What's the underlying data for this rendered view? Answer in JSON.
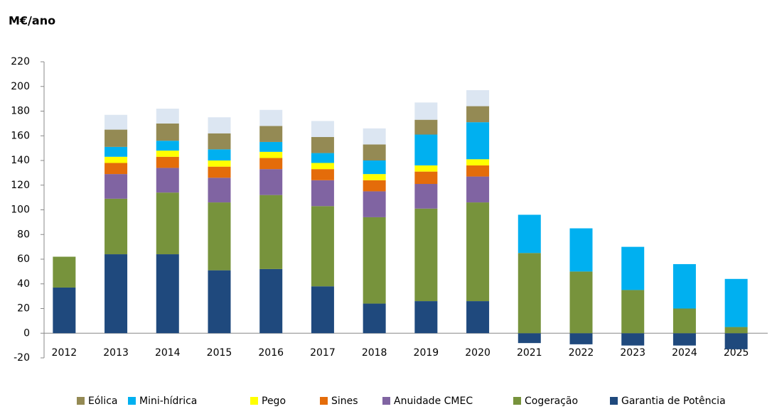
{
  "chart_data": {
    "type": "stacked_bar",
    "title": "M€/ano",
    "categories": [
      "2012",
      "2013",
      "2014",
      "2015",
      "2016",
      "2017",
      "2018",
      "2019",
      "2020",
      "2021",
      "2022",
      "2023",
      "2024",
      "2025"
    ],
    "series": [
      {
        "name": "Garantia de Potência",
        "color": "#1f497d",
        "values": [
          37,
          64,
          64,
          51,
          52,
          38,
          24,
          26,
          26,
          -8,
          -9,
          -10,
          -10,
          -13
        ]
      },
      {
        "name": "Cogeração",
        "color": "#77933c",
        "values": [
          25,
          45,
          50,
          55,
          60,
          65,
          70,
          75,
          80,
          65,
          50,
          35,
          20,
          5
        ]
      },
      {
        "name": "Anuidade CMEC",
        "color": "#8064a2",
        "values": [
          0,
          20,
          20,
          20,
          21,
          21,
          21,
          20,
          21,
          0,
          0,
          0,
          0,
          0
        ]
      },
      {
        "name": "Sines",
        "color": "#e46c0a",
        "values": [
          0,
          9,
          9,
          9,
          9,
          9,
          9,
          10,
          9,
          0,
          0,
          0,
          0,
          0
        ]
      },
      {
        "name": "Pego",
        "color": "#ffff00",
        "values": [
          0,
          5,
          5,
          5,
          5,
          5,
          5,
          5,
          5,
          0,
          0,
          0,
          0,
          0
        ]
      },
      {
        "name": "Mini-hídrica",
        "color": "#00b0f0",
        "values": [
          0,
          8,
          8,
          9,
          8,
          8,
          11,
          25,
          30,
          31,
          35,
          35,
          36,
          39
        ]
      },
      {
        "name": "Eólica",
        "color": "#948a54",
        "values": [
          0,
          14,
          14,
          13,
          13,
          13,
          13,
          12,
          13,
          0,
          0,
          0,
          0,
          0
        ]
      },
      {
        "name": null,
        "color": "#dce6f2",
        "values": [
          0,
          12,
          12,
          13,
          13,
          13,
          13,
          14,
          13,
          0,
          0,
          0,
          0,
          0
        ]
      }
    ],
    "ylim": [
      -20,
      220
    ],
    "yticks": [
      -20,
      0,
      20,
      40,
      60,
      80,
      100,
      120,
      140,
      160,
      180,
      200,
      220
    ],
    "grid": false
  }
}
